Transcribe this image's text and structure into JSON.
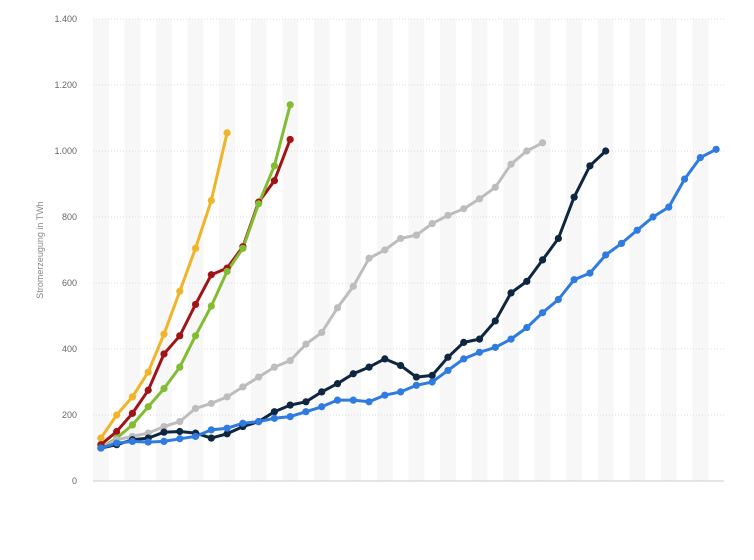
{
  "chart_data": {
    "type": "line",
    "ylabel": "Stromerzeugung in TWh",
    "xlabel": "",
    "ylim": [
      0,
      1400
    ],
    "yticks": [
      0,
      200,
      400,
      600,
      800,
      1000,
      1200,
      1400
    ],
    "ytick_labels": [
      "0",
      "200",
      "400",
      "600",
      "800",
      "1.000",
      "1.200",
      "1.400"
    ],
    "x_count": 40,
    "grid": true,
    "legend": "none",
    "series": [
      {
        "color": "#f0b428",
        "values": [
          130,
          200,
          255,
          330,
          445,
          575,
          705,
          850,
          1055
        ]
      },
      {
        "color": "#a01418",
        "values": [
          110,
          150,
          205,
          275,
          385,
          440,
          535,
          625,
          645,
          710,
          845,
          910,
          1035
        ]
      },
      {
        "color": "#82bc32",
        "values": [
          100,
          130,
          170,
          225,
          280,
          345,
          440,
          530,
          635,
          705,
          840,
          955,
          1140
        ]
      },
      {
        "color": "#bdbdbd",
        "values": [
          100,
          125,
          135,
          145,
          165,
          180,
          220,
          235,
          255,
          285,
          315,
          345,
          365,
          415,
          450,
          525,
          590,
          675,
          700,
          735,
          745,
          780,
          805,
          825,
          855,
          890,
          960,
          1000,
          1025
        ]
      },
      {
        "color": "#0e2640",
        "values": [
          100,
          110,
          125,
          130,
          148,
          150,
          145,
          130,
          143,
          165,
          180,
          210,
          230,
          240,
          270,
          295,
          325,
          345,
          370,
          350,
          315,
          320,
          375,
          420,
          430,
          485,
          570,
          605,
          670,
          735,
          860,
          955,
          1000
        ]
      },
      {
        "color": "#2f7be0",
        "values": [
          100,
          115,
          120,
          118,
          120,
          128,
          135,
          155,
          160,
          175,
          180,
          190,
          195,
          210,
          225,
          245,
          245,
          240,
          260,
          270,
          290,
          300,
          335,
          370,
          390,
          405,
          430,
          465,
          510,
          550,
          610,
          630,
          685,
          720,
          760,
          800,
          830,
          915,
          980,
          1005
        ]
      }
    ]
  }
}
